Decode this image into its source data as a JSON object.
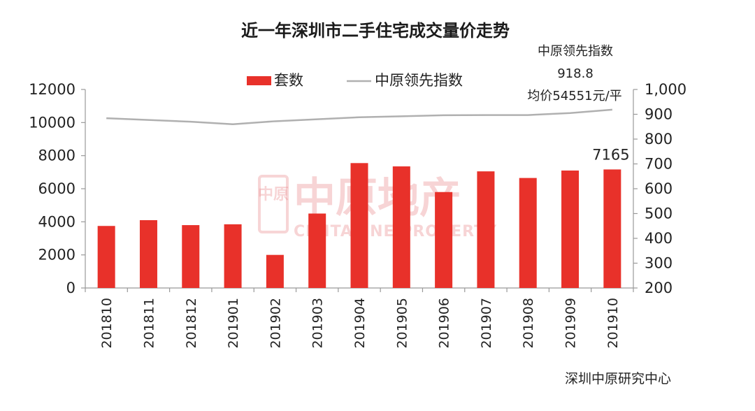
{
  "chart_data": {
    "type": "bar",
    "title": "近一年深圳市二手住宅成交量价走势",
    "categories": [
      "201810",
      "201811",
      "201812",
      "201901",
      "201902",
      "201903",
      "201904",
      "201905",
      "201906",
      "201907",
      "201908",
      "201909",
      "201910"
    ],
    "series": [
      {
        "name": "套数",
        "type": "bar",
        "axis": "left",
        "color": "#e8312a",
        "values": [
          3750,
          4100,
          3800,
          3850,
          2000,
          4500,
          7550,
          7350,
          5800,
          7050,
          6650,
          7100,
          7165
        ]
      },
      {
        "name": "中原领先指数",
        "type": "line",
        "axis": "right",
        "color": "#b0b0b0",
        "values": [
          884,
          877,
          870,
          860,
          872,
          880,
          888,
          892,
          896,
          897,
          897,
          905,
          918.8
        ]
      }
    ],
    "y_left": {
      "min": 0,
      "max": 12000,
      "ticks": [
        "0",
        "2000",
        "4000",
        "6000",
        "8000",
        "10000",
        "12000"
      ]
    },
    "y_right": {
      "min": 200,
      "max": 1000,
      "ticks": [
        "200",
        "300",
        "400",
        "500",
        "600",
        "700",
        "800",
        "900",
        "1,000"
      ]
    },
    "data_label": "7165",
    "annotation": [
      "中原领先指数",
      "918.8",
      "均价54551元/平"
    ],
    "legend": {
      "position": "top-center"
    },
    "grid": false,
    "watermark": {
      "main": "中原地产",
      "sub": "CENTALINE PROPERTY",
      "logo": "中原"
    },
    "source": "深圳中原研究中心"
  }
}
